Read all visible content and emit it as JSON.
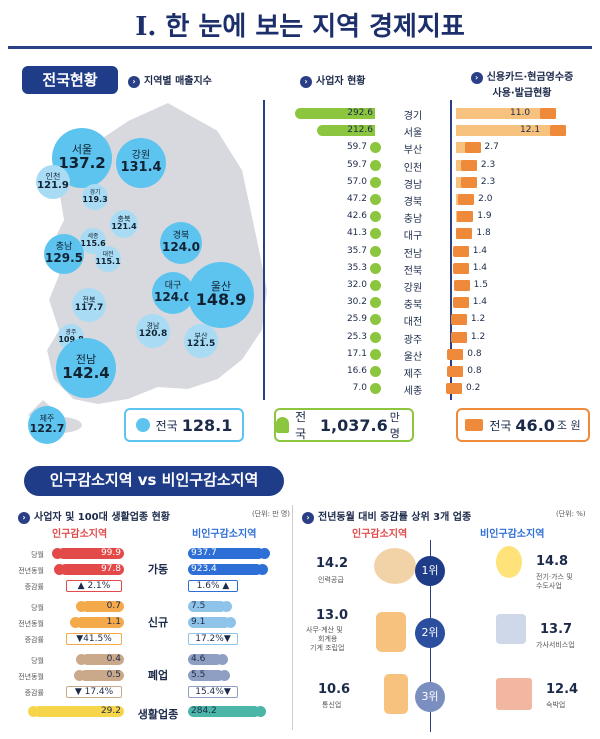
{
  "title": "Ⅰ. 한 눈에 보는 지역 경제지표",
  "top": {
    "tag": "전국현황",
    "sub1": "지역별 매출지수",
    "sub2": "사업자 현황",
    "sub3a": "신용카드·현금영수증",
    "sub3b": "사용·발급현황",
    "bubbles": [
      {
        "name": "서울",
        "value": "137.2"
      },
      {
        "name": "강원",
        "value": "131.4"
      },
      {
        "name": "인천",
        "value": "121.9"
      },
      {
        "name": "경기",
        "value": "119.3"
      },
      {
        "name": "충북",
        "value": "121.4"
      },
      {
        "name": "세종",
        "value": "115.6"
      },
      {
        "name": "대전",
        "value": "115.1"
      },
      {
        "name": "충남",
        "value": "129.5"
      },
      {
        "name": "경북",
        "value": "124.0"
      },
      {
        "name": "대구",
        "value": "124.0"
      },
      {
        "name": "울산",
        "value": "148.9"
      },
      {
        "name": "전북",
        "value": "117.7"
      },
      {
        "name": "경남",
        "value": "120.8"
      },
      {
        "name": "부산",
        "value": "121.5"
      },
      {
        "name": "광주",
        "value": "109.8"
      },
      {
        "name": "전남",
        "value": "142.4"
      },
      {
        "name": "제주",
        "value": "122.7"
      }
    ],
    "national": {
      "label": "전국",
      "value": "128.1"
    },
    "biz_total": {
      "label": "전국",
      "value": "1,037.6",
      "unit": "만 명"
    },
    "card_total": {
      "label": "전국",
      "value": "46.0",
      "unit": "조 원"
    },
    "rows": [
      {
        "region": "경기",
        "biz": 292.6,
        "card": 11.0,
        "biz_s": "292.6",
        "card_s": "11.0"
      },
      {
        "region": "서울",
        "biz": 212.6,
        "card": 12.1,
        "biz_s": "212.6",
        "card_s": "12.1"
      },
      {
        "region": "부산",
        "biz": 59.7,
        "card": 2.7,
        "biz_s": "59.7",
        "card_s": "2.7"
      },
      {
        "region": "인천",
        "biz": 59.7,
        "card": 2.3,
        "biz_s": "59.7",
        "card_s": "2.3"
      },
      {
        "region": "경남",
        "biz": 57.0,
        "card": 2.3,
        "biz_s": "57.0",
        "card_s": "2.3"
      },
      {
        "region": "경북",
        "biz": 47.2,
        "card": 2.0,
        "biz_s": "47.2",
        "card_s": "2.0"
      },
      {
        "region": "충남",
        "biz": 42.6,
        "card": 1.9,
        "biz_s": "42.6",
        "card_s": "1.9"
      },
      {
        "region": "대구",
        "biz": 41.3,
        "card": 1.8,
        "biz_s": "41.3",
        "card_s": "1.8"
      },
      {
        "region": "전남",
        "biz": 35.7,
        "card": 1.4,
        "biz_s": "35.7",
        "card_s": "1.4"
      },
      {
        "region": "전북",
        "biz": 35.3,
        "card": 1.4,
        "biz_s": "35.3",
        "card_s": "1.4"
      },
      {
        "region": "강원",
        "biz": 32.0,
        "card": 1.5,
        "biz_s": "32.0",
        "card_s": "1.5"
      },
      {
        "region": "충북",
        "biz": 30.2,
        "card": 1.4,
        "biz_s": "30.2",
        "card_s": "1.4"
      },
      {
        "region": "대전",
        "biz": 25.9,
        "card": 1.2,
        "biz_s": "25.9",
        "card_s": "1.2"
      },
      {
        "region": "광주",
        "biz": 25.3,
        "card": 1.2,
        "biz_s": "25.3",
        "card_s": "1.2"
      },
      {
        "region": "울산",
        "biz": 17.1,
        "card": 0.8,
        "biz_s": "17.1",
        "card_s": "0.8"
      },
      {
        "region": "제주",
        "biz": 16.6,
        "card": 0.8,
        "biz_s": "16.6",
        "card_s": "0.8"
      },
      {
        "region": "세종",
        "biz": 7.0,
        "card": 0.2,
        "biz_s": "7.0",
        "card_s": "0.2"
      }
    ]
  },
  "bottom": {
    "tag": "인구감소지역 vs 비인구감소지역",
    "left": {
      "sub": "사업자 및 100대 생활업종 현황",
      "unit": "(단위: 만 명)",
      "h_left": "인구감소지역",
      "h_right": "비인구감소지역",
      "groups": [
        {
          "cat": "가동",
          "rows": [
            {
              "lbl": "당월",
              "l": "99.9",
              "r": "937.7"
            },
            {
              "lbl": "전년동월",
              "l": "97.8",
              "r": "923.4"
            },
            {
              "lbl": "증감률",
              "l": "▲ 2.1%",
              "r": "1.6% ▲"
            }
          ]
        },
        {
          "cat": "신규",
          "rows": [
            {
              "lbl": "당월",
              "l": "0.7",
              "r": "7.5"
            },
            {
              "lbl": "전년동월",
              "l": "1.1",
              "r": "9.1"
            },
            {
              "lbl": "증감률",
              "l": "▼41.5%",
              "r": "17.2%▼"
            }
          ]
        },
        {
          "cat": "폐업",
          "rows": [
            {
              "lbl": "당월",
              "l": "0.4",
              "r": "4.6"
            },
            {
              "lbl": "전년동월",
              "l": "0.5",
              "r": "5.5"
            },
            {
              "lbl": "증감률",
              "l": "▼ 17.4%",
              "r": "15.4%▼"
            }
          ]
        },
        {
          "cat": "생활업종",
          "rows": [
            {
              "lbl": "당월",
              "l": "29.2",
              "r": "284.2"
            }
          ]
        }
      ]
    },
    "right": {
      "sub": "전년동월 대비 증감률 상위 3개 업종",
      "unit": "(단위: %)",
      "h_left": "인구감소지역",
      "h_right": "비인구감소지역",
      "ranks": [
        {
          "rank": "1위",
          "lv": "14.2",
          "ln": "인력공급",
          "rv": "14.8",
          "rn1": "전기·가스 및",
          "rn2": "수도사업"
        },
        {
          "rank": "2위",
          "lv": "13.0",
          "ln1": "사무·계산 및",
          "ln2": "회계용",
          "ln3": "기계 조립업",
          "rv": "13.7",
          "rn1": "가사서비스업",
          "rn2": ""
        },
        {
          "rank": "3위",
          "lv": "10.6",
          "ln": "통신업",
          "rv": "12.4",
          "rn1": "숙박업",
          "rn2": ""
        }
      ]
    }
  }
}
